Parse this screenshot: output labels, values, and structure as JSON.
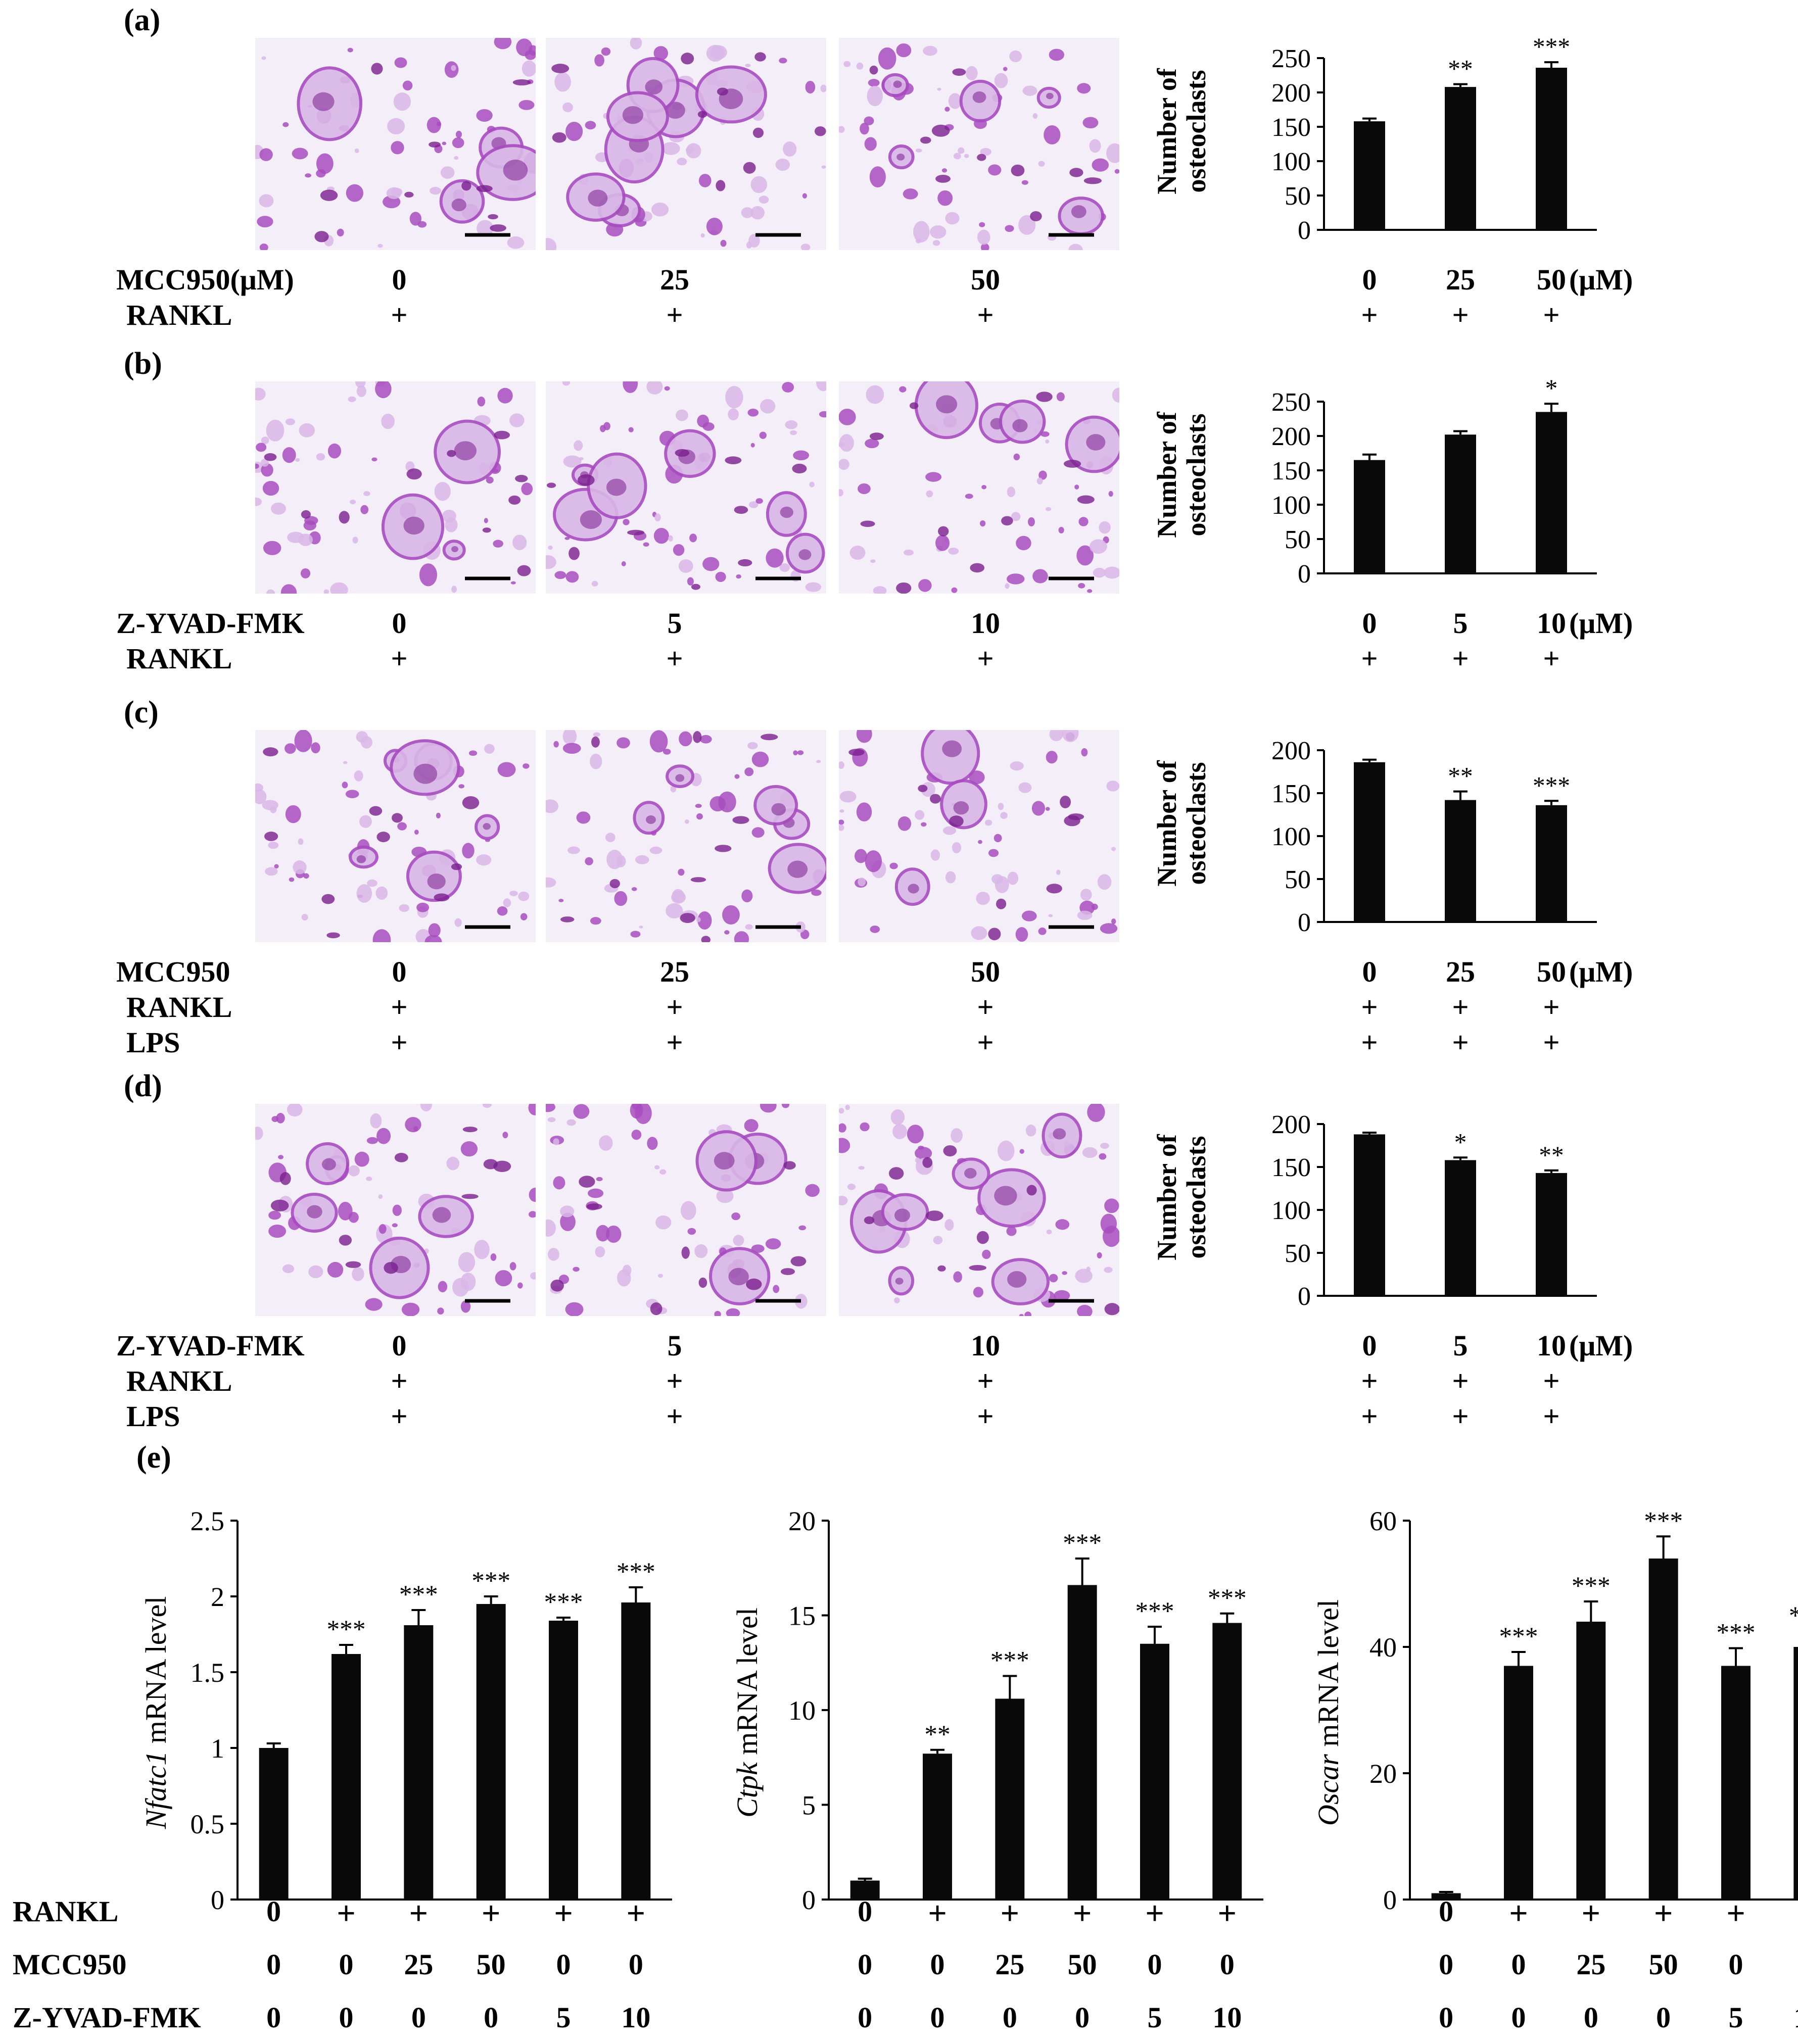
{
  "panels": [
    {
      "label": "(a)",
      "treatment_rows": [
        {
          "name": "MCC950(μM)",
          "values": [
            "0",
            "25",
            "50"
          ]
        },
        {
          "name": "RANKL",
          "values": [
            "+",
            "+",
            "+"
          ]
        }
      ],
      "chart_data": {
        "type": "bar",
        "categories": [
          "0",
          "25",
          "50"
        ],
        "values": [
          158,
          208,
          236
        ],
        "errors": [
          4,
          4,
          8
        ],
        "significance": [
          "",
          "**",
          "***"
        ],
        "ylabel_line1": "Number of",
        "ylabel_line2": "osteoclasts",
        "ylim": [
          0,
          250
        ],
        "yticks": [
          0,
          50,
          100,
          150,
          200,
          250
        ],
        "unit": "(μM)",
        "below_rows": [
          [
            "+",
            "+",
            "+"
          ]
        ]
      }
    },
    {
      "label": "(b)",
      "treatment_rows": [
        {
          "name": "Z-YVAD-FMK",
          "values": [
            "0",
            "5",
            "10"
          ]
        },
        {
          "name": "RANKL",
          "values": [
            "+",
            "+",
            "+"
          ]
        }
      ],
      "chart_data": {
        "type": "bar",
        "categories": [
          "0",
          "5",
          "10"
        ],
        "values": [
          165,
          202,
          235
        ],
        "errors": [
          8,
          5,
          12
        ],
        "significance": [
          "",
          "",
          "*"
        ],
        "ylabel_line1": "Number of",
        "ylabel_line2": "osteoclasts",
        "ylim": [
          0,
          250
        ],
        "yticks": [
          0,
          50,
          100,
          150,
          200,
          250
        ],
        "unit": "(μM)",
        "below_rows": [
          [
            "+",
            "+",
            "+"
          ]
        ]
      }
    },
    {
      "label": "(c)",
      "treatment_rows": [
        {
          "name": "MCC950",
          "values": [
            "0",
            "25",
            "50"
          ]
        },
        {
          "name": "RANKL",
          "values": [
            "+",
            "+",
            "+"
          ]
        },
        {
          "name": "LPS",
          "values": [
            "+",
            "+",
            "+"
          ]
        }
      ],
      "chart_data": {
        "type": "bar",
        "categories": [
          "0",
          "25",
          "50"
        ],
        "values": [
          186,
          142,
          136
        ],
        "errors": [
          3,
          10,
          5
        ],
        "significance": [
          "",
          "**",
          "***"
        ],
        "ylabel_line1": "Number of",
        "ylabel_line2": "osteoclasts",
        "ylim": [
          0,
          200
        ],
        "yticks": [
          0,
          50,
          100,
          150,
          200
        ],
        "unit": "(μM)",
        "below_rows": [
          [
            "+",
            "+",
            "+"
          ],
          [
            "+",
            "+",
            "+"
          ]
        ]
      }
    },
    {
      "label": "(d)",
      "treatment_rows": [
        {
          "name": "Z-YVAD-FMK",
          "values": [
            "0",
            "5",
            "10"
          ]
        },
        {
          "name": "RANKL",
          "values": [
            "+",
            "+",
            "+"
          ]
        },
        {
          "name": "LPS",
          "values": [
            "+",
            "+",
            "+"
          ]
        }
      ],
      "chart_data": {
        "type": "bar",
        "categories": [
          "0",
          "5",
          "10"
        ],
        "values": [
          188,
          158,
          143
        ],
        "errors": [
          2,
          3,
          3
        ],
        "significance": [
          "",
          "*",
          "**"
        ],
        "ylabel_line1": "Number of",
        "ylabel_line2": "osteoclasts",
        "ylim": [
          0,
          200
        ],
        "yticks": [
          0,
          50,
          100,
          150,
          200
        ],
        "unit": "(μM)",
        "below_rows": [
          [
            "+",
            "+",
            "+"
          ],
          [
            "+",
            "+",
            "+"
          ]
        ]
      }
    }
  ],
  "panel_e": {
    "label": "(e)",
    "row_names": [
      "RANKL",
      "MCC950",
      "Z-YVAD-FMK"
    ],
    "rows": [
      [
        "0",
        "+",
        "+",
        "+",
        "+",
        "+"
      ],
      [
        "0",
        "0",
        "25",
        "50",
        "0",
        "0"
      ],
      [
        "0",
        "0",
        "0",
        "0",
        "5",
        "10"
      ]
    ],
    "charts": [
      {
        "type": "bar",
        "gene": "Nfatc1",
        "ylabel_suffix": " mRNA level",
        "values": [
          1.0,
          1.62,
          1.81,
          1.95,
          1.84,
          1.96
        ],
        "errors": [
          0.03,
          0.06,
          0.1,
          0.05,
          0.02,
          0.1
        ],
        "significance": [
          "",
          "***",
          "***",
          "***",
          "***",
          "***"
        ],
        "ylim": [
          0,
          2.5
        ],
        "yticks": [
          0,
          0.5,
          1,
          1.5,
          2,
          2.5
        ],
        "yticklabels": [
          "0",
          "0.5",
          "1",
          "1.5",
          "2",
          "2.5"
        ]
      },
      {
        "type": "bar",
        "gene": "Ctpk",
        "ylabel_suffix": " mRNA level",
        "values": [
          1.0,
          7.7,
          10.6,
          16.6,
          13.5,
          14.6
        ],
        "errors": [
          0.1,
          0.2,
          1.2,
          1.4,
          0.9,
          0.5
        ],
        "significance": [
          "",
          "**",
          "***",
          "***",
          "***",
          "***"
        ],
        "ylim": [
          0,
          20
        ],
        "yticks": [
          0,
          5,
          10,
          15,
          20
        ],
        "yticklabels": [
          "0",
          "5",
          "10",
          "15",
          "20"
        ]
      },
      {
        "type": "bar",
        "gene": "Oscar",
        "ylabel_suffix": " mRNA level",
        "values": [
          1.0,
          37,
          44,
          54,
          37,
          40
        ],
        "errors": [
          0.2,
          2.2,
          3.2,
          3.5,
          2.8,
          2.5
        ],
        "significance": [
          "",
          "***",
          "***",
          "***",
          "***",
          "***"
        ],
        "ylim": [
          0,
          60
        ],
        "yticks": [
          0,
          20,
          40,
          60
        ],
        "yticklabels": [
          "0",
          "20",
          "40",
          "60"
        ]
      }
    ]
  },
  "colors": {
    "bar": "#0a0a0a",
    "stain_dark": "#7a1f8f",
    "stain_mid": "#a84cc0",
    "stain_light": "#d9b6e6",
    "background": "#f3eef8"
  }
}
